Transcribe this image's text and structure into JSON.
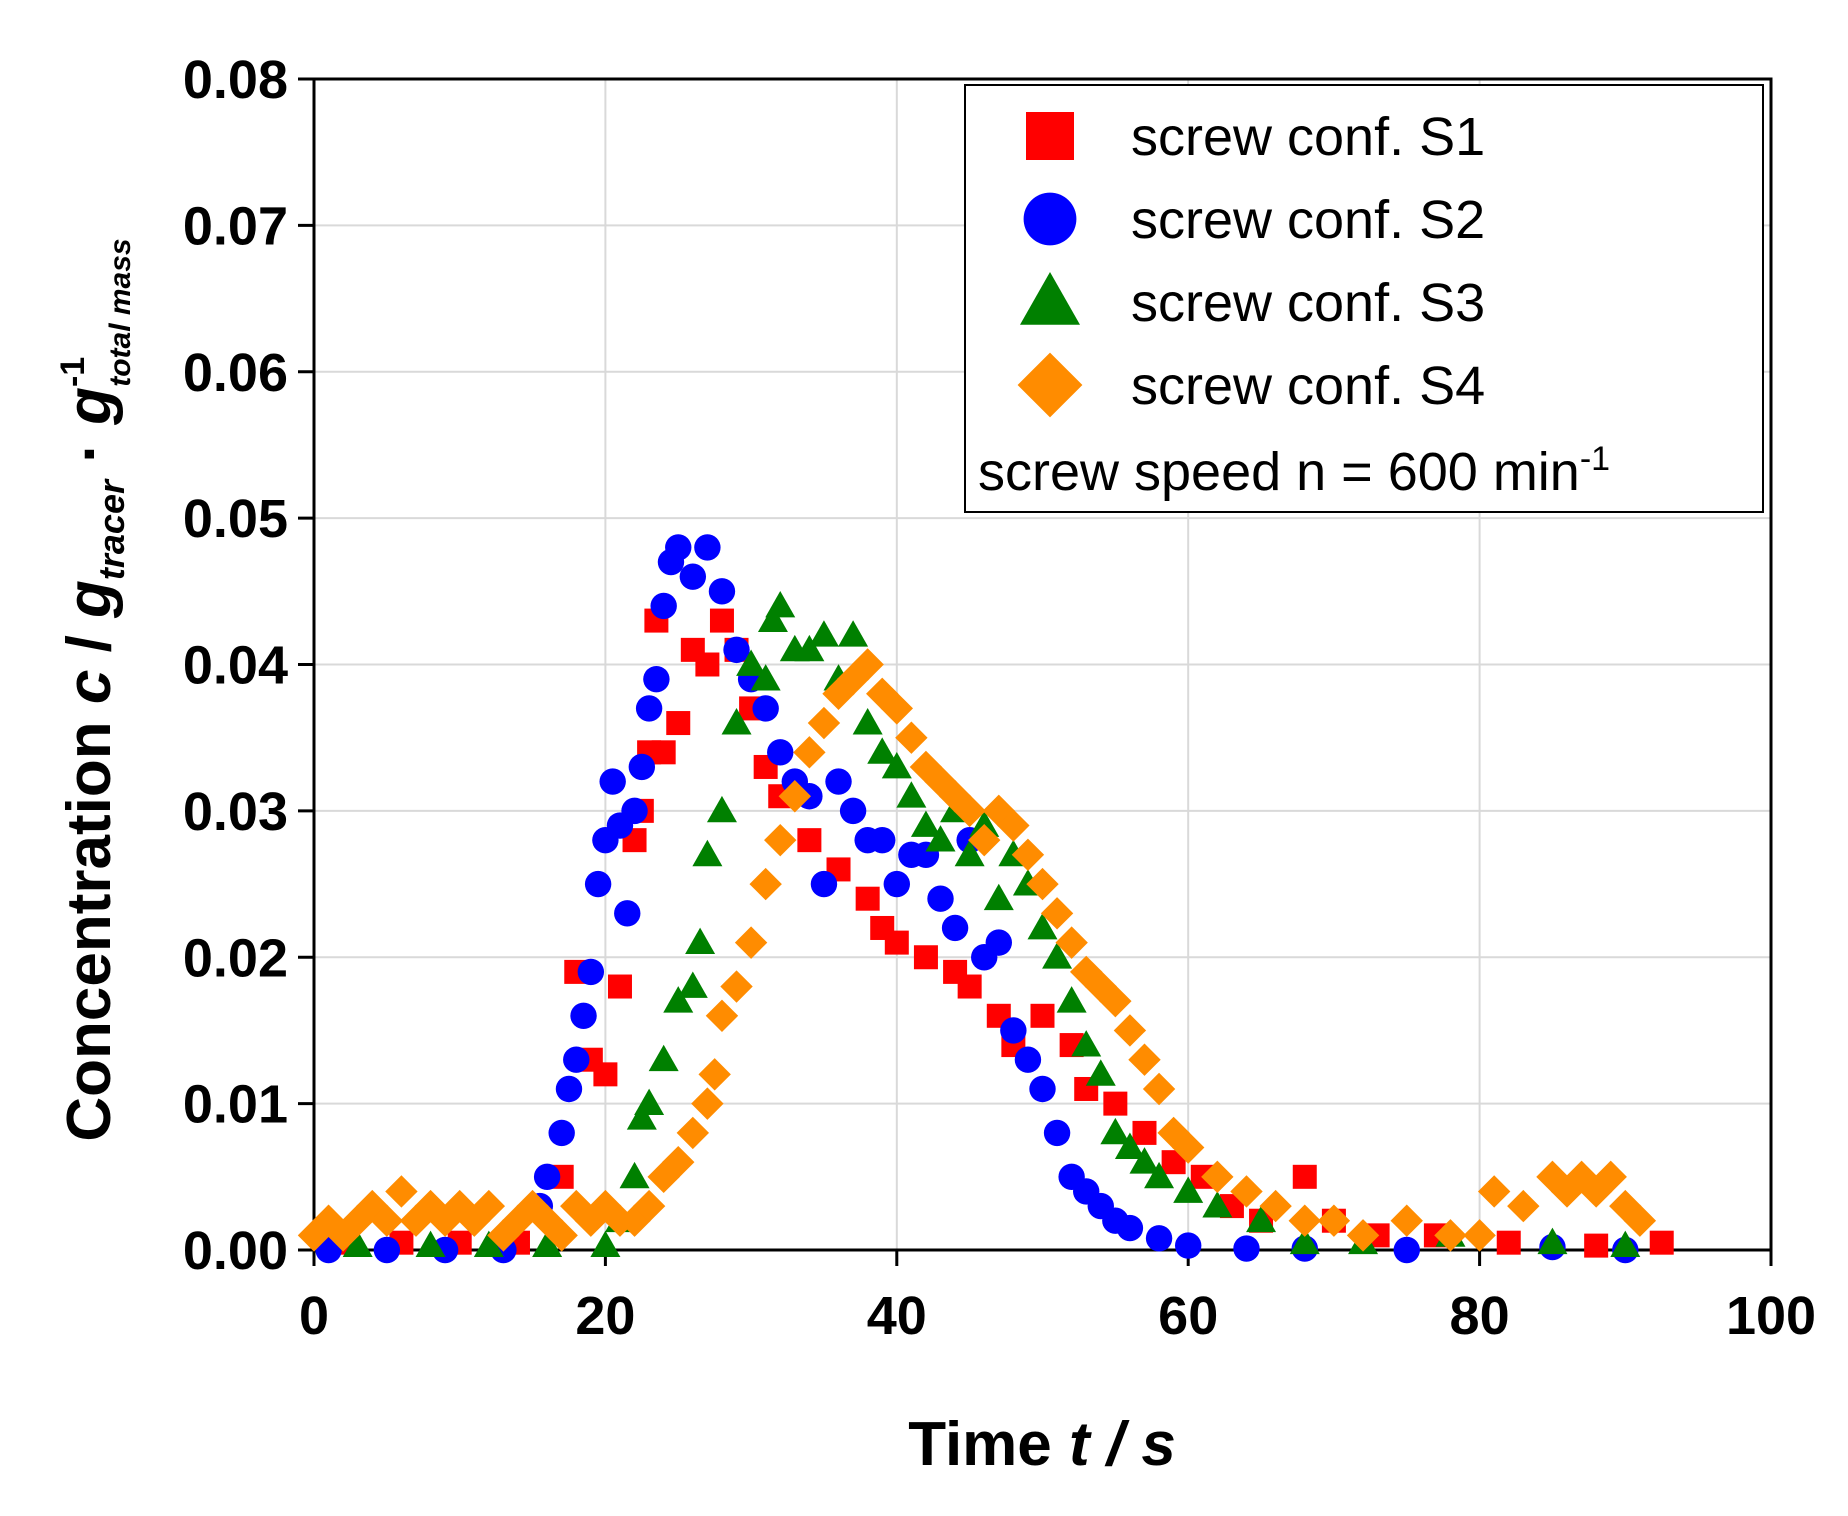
{
  "chart_data": {
    "type": "scatter",
    "xlabel": [
      "Time ",
      "t / s"
    ],
    "ylabel": [
      "Concentration ",
      "c",
      " / ",
      "g",
      "tracer",
      " · ",
      "g",
      "-1",
      "total mass"
    ],
    "legend_note": [
      "screw speed n = 600 min",
      "-1"
    ],
    "legend": "upper right",
    "grid": true,
    "xlim": [
      0,
      100
    ],
    "ylim": [
      0,
      0.08
    ],
    "xticks": [
      0,
      20,
      40,
      60,
      80,
      100
    ],
    "yticks": [
      {
        "value": 0,
        "label": "0.00"
      },
      {
        "value": 0.01,
        "label": "0.01"
      },
      {
        "value": 0.02,
        "label": "0.02"
      },
      {
        "value": 0.03,
        "label": "0.03"
      },
      {
        "value": 0.04,
        "label": "0.04"
      },
      {
        "value": 0.05,
        "label": "0.05"
      },
      {
        "value": 0.06,
        "label": "0.06"
      },
      {
        "value": 0.07,
        "label": "0.07"
      },
      {
        "value": 0.08,
        "label": "0.08"
      }
    ],
    "series": [
      {
        "name": "screw conf. S1",
        "color": "#ff0000",
        "marker": "square",
        "x": [
          2,
          6,
          10,
          14,
          17,
          18,
          19,
          20,
          21,
          22,
          22.5,
          23,
          23.5,
          24,
          25,
          26,
          27,
          28,
          29,
          30,
          31,
          32,
          34,
          36,
          38,
          39,
          40,
          42,
          44,
          45,
          47,
          48,
          50,
          52,
          53,
          55,
          57,
          59,
          61,
          63,
          65,
          68,
          70,
          73,
          77,
          82,
          88,
          92.5
        ],
        "values": [
          0.0005,
          0.0005,
          0.0005,
          0.0005,
          0.005,
          0.019,
          0.013,
          0.012,
          0.018,
          0.028,
          0.03,
          0.034,
          0.043,
          0.034,
          0.036,
          0.041,
          0.04,
          0.043,
          0.041,
          0.037,
          0.033,
          0.031,
          0.028,
          0.026,
          0.024,
          0.022,
          0.021,
          0.02,
          0.019,
          0.018,
          0.016,
          0.014,
          0.016,
          0.014,
          0.011,
          0.01,
          0.008,
          0.006,
          0.005,
          0.003,
          0.002,
          0.005,
          0.002,
          0.001,
          0.001,
          0.0005,
          0.0003,
          0.0005
        ]
      },
      {
        "name": "screw conf. S2",
        "color": "#0000ff",
        "marker": "circle",
        "x": [
          1,
          5,
          9,
          13,
          15.5,
          16,
          17,
          17.5,
          18,
          18.5,
          19,
          19.5,
          20,
          20.5,
          21,
          21.5,
          22,
          22.5,
          23,
          23.5,
          24,
          24.5,
          25,
          26,
          27,
          28,
          29,
          30,
          31,
          32,
          33,
          34,
          35,
          36,
          37,
          38,
          39,
          40,
          41,
          42,
          43,
          44,
          45,
          46,
          47,
          48,
          49,
          50,
          51,
          52,
          53,
          54,
          55,
          56,
          58,
          60,
          64,
          68,
          75,
          85,
          90
        ],
        "values": [
          0,
          0,
          0,
          0,
          0.003,
          0.005,
          0.008,
          0.011,
          0.013,
          0.016,
          0.019,
          0.025,
          0.028,
          0.032,
          0.029,
          0.023,
          0.03,
          0.033,
          0.037,
          0.039,
          0.044,
          0.047,
          0.048,
          0.046,
          0.048,
          0.045,
          0.041,
          0.039,
          0.037,
          0.034,
          0.032,
          0.031,
          0.025,
          0.032,
          0.03,
          0.028,
          0.028,
          0.025,
          0.027,
          0.027,
          0.024,
          0.022,
          0.028,
          0.02,
          0.021,
          0.015,
          0.013,
          0.011,
          0.008,
          0.005,
          0.004,
          0.003,
          0.002,
          0.0015,
          0.0008,
          0.0003,
          0.0001,
          0.0001,
          0,
          0.0002,
          0
        ]
      },
      {
        "name": "screw conf. S3",
        "color": "#008000",
        "marker": "triangle",
        "x": [
          3,
          8,
          12,
          16,
          20,
          21,
          22,
          22.5,
          23,
          24,
          25,
          26,
          26.5,
          27,
          28,
          29,
          30,
          31,
          31.5,
          32,
          33,
          34,
          35,
          36,
          37,
          38,
          39,
          40,
          41,
          42,
          43,
          44,
          45,
          46,
          47,
          48,
          49,
          50,
          51,
          52,
          53,
          54,
          55,
          56,
          57,
          58,
          60,
          62,
          65,
          68,
          72,
          78,
          85,
          90
        ],
        "values": [
          0.0003,
          0.0003,
          0.0003,
          0.0003,
          0.0003,
          0.002,
          0.005,
          0.009,
          0.01,
          0.013,
          0.017,
          0.018,
          0.021,
          0.027,
          0.03,
          0.036,
          0.04,
          0.039,
          0.043,
          0.044,
          0.041,
          0.041,
          0.042,
          0.039,
          0.042,
          0.036,
          0.034,
          0.033,
          0.031,
          0.029,
          0.028,
          0.03,
          0.027,
          0.029,
          0.024,
          0.027,
          0.025,
          0.022,
          0.02,
          0.017,
          0.014,
          0.012,
          0.008,
          0.007,
          0.006,
          0.005,
          0.004,
          0.003,
          0.002,
          0.0005,
          0.0005,
          0.001,
          0.0005,
          0.0003
        ]
      },
      {
        "name": "screw conf. S4",
        "color": "#ff8c00",
        "marker": "diamond",
        "x": [
          0,
          1,
          2,
          3,
          4,
          5,
          6,
          7,
          8,
          9,
          10,
          11,
          12,
          13,
          14,
          15,
          16,
          17,
          18,
          19,
          20,
          21,
          22,
          23,
          24,
          25,
          26,
          27,
          27.5,
          28,
          29,
          30,
          31,
          32,
          33,
          34,
          35,
          36,
          37,
          38,
          39,
          40,
          41,
          42,
          43,
          44,
          45,
          46,
          47,
          48,
          49,
          50,
          51,
          52,
          53,
          54,
          55,
          56,
          57,
          58,
          59,
          60,
          62,
          64,
          66,
          68,
          70,
          72,
          75,
          78,
          80,
          81,
          83,
          85,
          86,
          87,
          88,
          89,
          90,
          91
        ],
        "values": [
          0.001,
          0.002,
          0.001,
          0.002,
          0.003,
          0.002,
          0.004,
          0.002,
          0.003,
          0.002,
          0.003,
          0.002,
          0.003,
          0.001,
          0.002,
          0.003,
          0.002,
          0.001,
          0.003,
          0.002,
          0.003,
          0.002,
          0.002,
          0.003,
          0.005,
          0.006,
          0.008,
          0.01,
          0.012,
          0.016,
          0.018,
          0.021,
          0.025,
          0.028,
          0.031,
          0.034,
          0.036,
          0.038,
          0.039,
          0.04,
          0.038,
          0.037,
          0.035,
          0.033,
          0.032,
          0.031,
          0.03,
          0.028,
          0.03,
          0.029,
          0.027,
          0.025,
          0.023,
          0.021,
          0.019,
          0.018,
          0.017,
          0.015,
          0.013,
          0.011,
          0.008,
          0.007,
          0.005,
          0.004,
          0.003,
          0.002,
          0.002,
          0.001,
          0.002,
          0.001,
          0.001,
          0.004,
          0.003,
          0.005,
          0.004,
          0.005,
          0.004,
          0.005,
          0.003,
          0.002
        ]
      }
    ]
  }
}
